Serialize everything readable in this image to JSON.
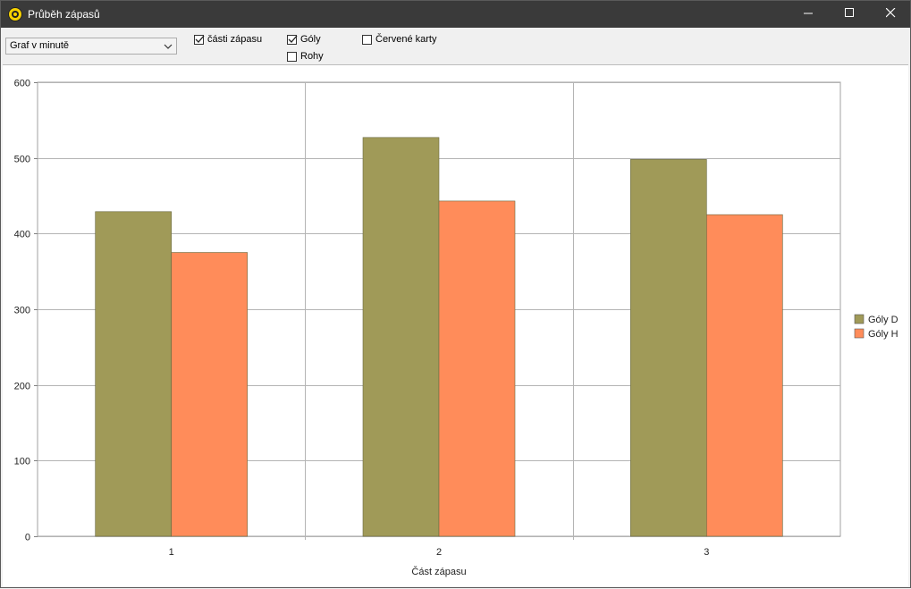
{
  "window": {
    "title": "Průběh zápasů"
  },
  "toolbar": {
    "select_value": "Graf v minutě",
    "checkboxes": [
      {
        "label": "části zápasu",
        "checked": true
      },
      {
        "label": "Góly",
        "checked": true
      },
      {
        "label": "Rohy",
        "checked": false
      },
      {
        "label": "Červené karty",
        "checked": false
      }
    ]
  },
  "icons": {
    "app": "ball-icon",
    "minimize": "minimize-icon",
    "maximize": "maximize-icon",
    "close": "close-icon",
    "dropdown": "chevron-down-icon"
  },
  "chart_data": {
    "type": "bar",
    "categories": [
      "1",
      "2",
      "3"
    ],
    "series": [
      {
        "name": "Góly D",
        "values": [
          429,
          527,
          498
        ],
        "color": "#a09a58"
      },
      {
        "name": "Góly H",
        "values": [
          375,
          443,
          425
        ],
        "color": "#ff8c5a"
      }
    ],
    "xlabel": "Část zápasu",
    "ylabel": "",
    "ylim": [
      0,
      600
    ],
    "yticks": [
      0,
      100,
      200,
      300,
      400,
      500,
      600
    ],
    "grid": true,
    "legend": "right"
  }
}
